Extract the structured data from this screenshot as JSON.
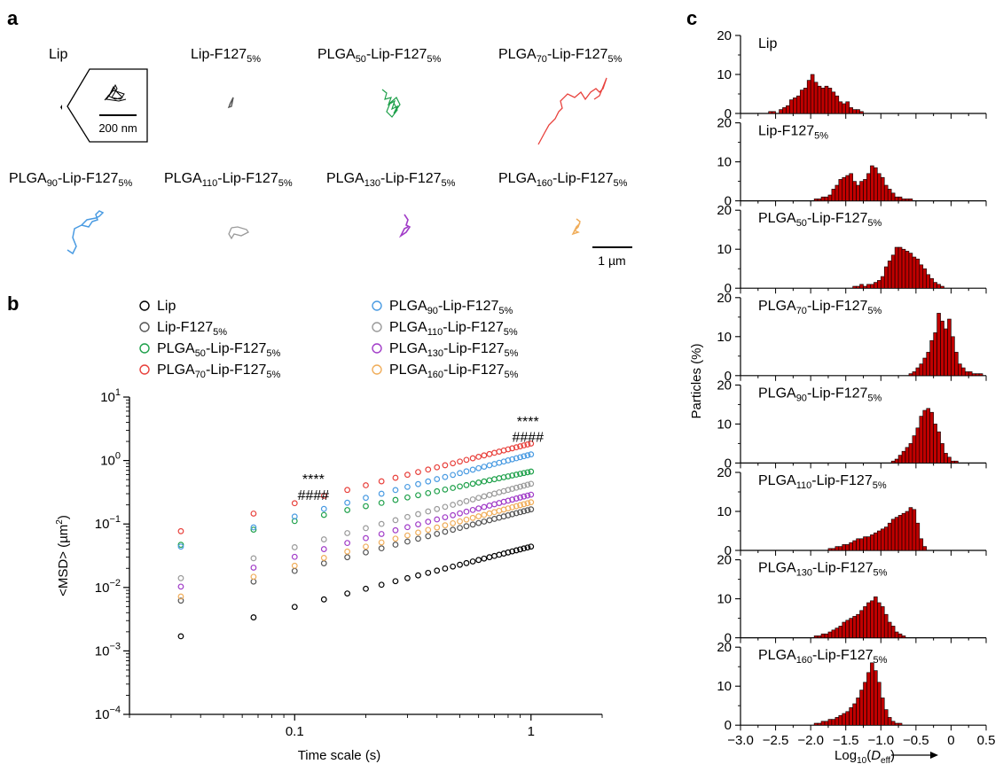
{
  "panel_labels": {
    "a": "a",
    "b": "b",
    "c": "c"
  },
  "panel_a": {
    "titles": [
      {
        "main": "Lip",
        "sub": ""
      },
      {
        "main": "Lip-F127",
        "sub": "5%"
      },
      {
        "pre": "PLGA",
        "presub": "50",
        "main": "-Lip-F127",
        "sub": "5%"
      },
      {
        "pre": "PLGA",
        "presub": "70",
        "main": "-Lip-F127",
        "sub": "5%"
      },
      {
        "pre": "PLGA",
        "presub": "90",
        "main": "-Lip-F127",
        "sub": "5%"
      },
      {
        "pre": "PLGA",
        "presub": "110",
        "main": "-Lip-F127",
        "sub": "5%"
      },
      {
        "pre": "PLGA",
        "presub": "130",
        "main": "-Lip-F127",
        "sub": "5%"
      },
      {
        "pre": "PLGA",
        "presub": "160",
        "main": "-Lip-F127",
        "sub": "5%"
      }
    ],
    "inset_scale_label": "200 nm",
    "scale_label": "1 µm",
    "track_colors": [
      "#000000",
      "#555555",
      "#1ea04a",
      "#e8413c",
      "#4a9be2",
      "#9a9a9a",
      "#a13cc8",
      "#f0ad5a"
    ]
  },
  "chart_data": [
    {
      "type": "scatter",
      "panel": "b",
      "xlabel": "Time scale (s)",
      "ylabel": "<MSD> (µm2)",
      "xscale": "log",
      "yscale": "log",
      "xlim": [
        0.02,
        2
      ],
      "ylim": [
        0.0001,
        10
      ],
      "x_ticks": [
        0.1,
        1
      ],
      "x_tick_labels": [
        "0.1",
        "1"
      ],
      "y_tick_labels": [
        {
          "base": "10",
          "exp": "1"
        },
        {
          "base": "10",
          "exp": "0"
        },
        {
          "base": "10",
          "exp": "−1"
        },
        {
          "base": "10",
          "exp": "−2"
        },
        {
          "base": "10",
          "exp": "−3"
        },
        {
          "base": "10",
          "exp": "−4"
        }
      ],
      "x": [
        0.033,
        0.067,
        0.1,
        0.133,
        0.167,
        0.2,
        0.233,
        0.267,
        0.3,
        0.333,
        0.367,
        0.4,
        0.433,
        0.467,
        0.5,
        0.533,
        0.567,
        0.6,
        0.633,
        0.667,
        0.7,
        0.733,
        0.767,
        0.8,
        0.833,
        0.867,
        0.9,
        0.933,
        0.967,
        1.0
      ],
      "series": [
        {
          "name": "Lip",
          "color": "#000000",
          "msd_1s": 0.044,
          "msd_first": 0.0017,
          "slope": 0.95
        },
        {
          "name": "Lip-F127",
          "sub": "5%",
          "color": "#555555",
          "msd_1s": 0.17,
          "msd_first": 0.0062,
          "slope": 0.97
        },
        {
          "name": "PLGA50-Lip-F127",
          "pre": "PLGA",
          "presub": "50",
          "main": "-Lip-F127",
          "sub": "5%",
          "color": "#1ea04a",
          "msd_1s": 0.67,
          "msd_first": 0.047,
          "slope": 0.78
        },
        {
          "name": "PLGA70-Lip-F127",
          "pre": "PLGA",
          "presub": "70",
          "main": "-Lip-F127",
          "sub": "5%",
          "color": "#e8413c",
          "msd_1s": 1.85,
          "msd_first": 0.077,
          "slope": 0.94
        },
        {
          "name": "PLGA90-Lip-F127",
          "pre": "PLGA",
          "presub": "90",
          "main": "-Lip-F127",
          "sub": "5%",
          "color": "#4a9be2",
          "msd_1s": 1.25,
          "msd_first": 0.044,
          "slope": 0.98
        },
        {
          "name": "PLGA110-Lip-F127",
          "pre": "PLGA",
          "presub": "110",
          "main": "-Lip-F127",
          "sub": "5%",
          "color": "#9a9a9a",
          "msd_1s": 0.43,
          "msd_first": 0.014,
          "slope": 1.0
        },
        {
          "name": "PLGA130-Lip-F127",
          "pre": "PLGA",
          "presub": "130",
          "main": "-Lip-F127",
          "sub": "5%",
          "color": "#a13cc8",
          "msd_1s": 0.29,
          "msd_first": 0.0103,
          "slope": 0.98
        },
        {
          "name": "PLGA160-Lip-F127",
          "pre": "PLGA",
          "presub": "160",
          "main": "-Lip-F127",
          "sub": "5%",
          "color": "#f0ad5a",
          "msd_1s": 0.22,
          "msd_first": 0.0072,
          "slope": 1.0
        }
      ],
      "annotations": [
        {
          "text": "****",
          "x": 0.12,
          "y": 0.52
        },
        {
          "text": "####",
          "x": 0.12,
          "y": 0.29
        },
        {
          "text": "****",
          "x": 0.97,
          "y": 4.2
        },
        {
          "text": "####",
          "x": 0.97,
          "y": 2.4
        }
      ]
    },
    {
      "type": "bar",
      "panel": "c",
      "subtype": "histogram",
      "xlabel": "Log10(Deff)",
      "ylabel": "Particles (%)",
      "xlim": [
        -3.0,
        0.5
      ],
      "ylim": [
        0,
        20
      ],
      "bin_width": 0.05,
      "x_tick_labels": [
        "−3.0",
        "−2.5",
        "−2.0",
        "−1.5",
        "−1.0",
        "−0.5",
        "0",
        "0.5"
      ],
      "y_tick_labels": [
        "0",
        "10",
        "20"
      ],
      "bar_color": "#c00000",
      "series": [
        {
          "name": "Lip",
          "bin_start": -2.6,
          "values": [
            0.5,
            0.5,
            0,
            1,
            1.5,
            2,
            3.5,
            4,
            4.5,
            6,
            6.5,
            8.5,
            10,
            8,
            7,
            6.5,
            7,
            6.5,
            5.5,
            4.5,
            3,
            2.5,
            3,
            1.5,
            1,
            1,
            0.5
          ]
        },
        {
          "name": "Lip-F127",
          "sub": "5%",
          "bin_start": -1.95,
          "values": [
            0.5,
            0.5,
            1,
            1,
            1.5,
            3,
            4,
            5.5,
            6,
            6.5,
            7,
            5,
            4,
            5,
            5.5,
            7,
            9,
            8.5,
            7,
            6,
            4,
            3,
            2,
            1,
            1,
            0.5,
            0.5,
            0.5
          ]
        },
        {
          "name": "PLGA50-Lip-F127",
          "pre": "PLGA",
          "presub": "50",
          "main": "-Lip-F127",
          "sub": "5%",
          "bin_start": -1.4,
          "values": [
            0.5,
            0.5,
            1,
            0.5,
            1,
            1,
            1.5,
            2,
            3,
            5.5,
            7,
            8.5,
            10.5,
            10.5,
            10,
            9.5,
            9,
            8,
            7.5,
            6,
            5,
            3.5,
            2.5,
            1.5,
            1,
            0.5
          ]
        },
        {
          "name": "PLGA70-Lip-F127",
          "pre": "PLGA",
          "presub": "70",
          "main": "-Lip-F127",
          "sub": "5%",
          "bin_start": -0.6,
          "values": [
            0.5,
            1,
            2,
            3,
            4.5,
            6,
            9,
            11,
            16,
            14,
            12,
            14.5,
            10,
            6,
            3,
            2,
            1,
            1,
            0.5,
            0.5,
            0.5
          ]
        },
        {
          "name": "PLGA90-Lip-F127",
          "pre": "PLGA",
          "presub": "90",
          "main": "-Lip-F127",
          "sub": "5%",
          "bin_start": -0.85,
          "values": [
            0.5,
            1,
            2,
            3,
            4,
            5,
            7,
            9,
            12,
            13.5,
            14,
            13,
            10,
            8,
            5,
            2.5,
            1.5,
            0.5,
            0.5
          ]
        },
        {
          "name": "PLGA110-Lip-F127",
          "pre": "PLGA",
          "presub": "110",
          "main": "-Lip-F127",
          "sub": "5%",
          "bin_start": -1.75,
          "values": [
            0.5,
            0.5,
            1,
            1,
            1.5,
            1.5,
            2,
            2.5,
            3,
            3,
            3.5,
            3.5,
            4,
            4.5,
            5,
            5.5,
            6,
            7,
            8,
            8.5,
            9,
            9.5,
            10,
            11,
            10.5,
            7,
            3,
            1
          ]
        },
        {
          "name": "PLGA130-Lip-F127",
          "pre": "PLGA",
          "presub": "130",
          "main": "-Lip-F127",
          "sub": "5%",
          "bin_start": -1.95,
          "values": [
            0.5,
            0.5,
            1,
            1,
            1.5,
            2,
            2.5,
            3,
            4,
            4.5,
            5,
            5.5,
            6,
            7,
            8,
            9,
            9.5,
            10.5,
            9,
            8,
            6,
            4,
            3,
            1.5,
            1,
            0.5
          ]
        },
        {
          "name": "PLGA160-Lip-F127",
          "pre": "PLGA",
          "presub": "160",
          "main": "-Lip-F127",
          "sub": "5%",
          "bin_start": -1.95,
          "values": [
            0.5,
            0.5,
            1,
            1,
            1.5,
            1.5,
            2,
            2.5,
            3,
            3.5,
            4.5,
            5.5,
            7,
            9,
            11,
            13.5,
            16,
            14,
            11,
            7,
            4,
            2,
            1,
            0.5,
            0.5
          ]
        }
      ]
    }
  ]
}
